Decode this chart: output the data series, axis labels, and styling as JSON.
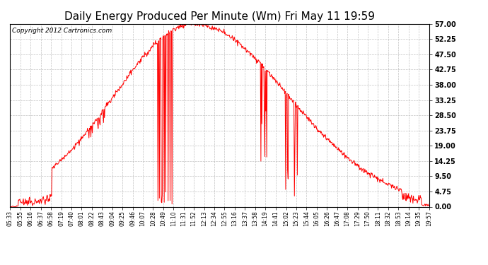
{
  "title": "Daily Energy Produced Per Minute (Wm) Fri May 11 19:59",
  "copyright": "Copyright 2012 Cartronics.com",
  "yticks": [
    0.0,
    4.75,
    9.5,
    14.25,
    19.0,
    23.75,
    28.5,
    33.25,
    38.0,
    42.75,
    47.5,
    52.25,
    57.0
  ],
  "ymin": 0.0,
  "ymax": 57.0,
  "line_color": "#ff0000",
  "bg_color": "#ffffff",
  "grid_color": "#bbbbbb",
  "title_fontsize": 11,
  "copyright_fontsize": 6.5,
  "x_labels": [
    "05:33",
    "05:55",
    "06:16",
    "06:37",
    "06:58",
    "07:19",
    "07:40",
    "08:01",
    "08:22",
    "08:43",
    "09:04",
    "09:25",
    "09:46",
    "10:07",
    "10:28",
    "10:49",
    "11:10",
    "11:31",
    "11:52",
    "12:13",
    "12:34",
    "12:55",
    "13:16",
    "13:37",
    "13:58",
    "14:19",
    "14:41",
    "15:02",
    "15:23",
    "15:44",
    "16:05",
    "16:26",
    "16:47",
    "17:08",
    "17:29",
    "17:50",
    "18:11",
    "18:32",
    "18:53",
    "19:14",
    "19:35",
    "19:57"
  ]
}
